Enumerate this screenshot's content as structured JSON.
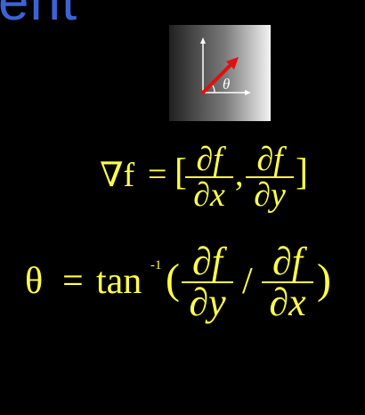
{
  "title": {
    "text": "ent",
    "color": "#3b63d6"
  },
  "thumbnail": {
    "theta_label": "θ"
  },
  "gradient_formula": {
    "lhs": "∇f",
    "equals": "=",
    "open_bracket": "[",
    "close_bracket": "]",
    "separator": ",",
    "partial_x": {
      "numerator": "∂f",
      "denominator": "∂x"
    },
    "partial_y": {
      "numerator": "∂f",
      "denominator": "∂y"
    }
  },
  "angle_formula": {
    "lhs": "θ",
    "equals": "=",
    "function": "tan",
    "exponent": "-1",
    "open_paren": "(",
    "close_paren": ")",
    "slash": "/",
    "partial_y": {
      "numerator": "∂f",
      "denominator": "∂y"
    },
    "partial_x": {
      "numerator": "∂f",
      "denominator": "∂x"
    }
  },
  "colors": {
    "formula": "#ffff4a",
    "background": "#000000"
  }
}
